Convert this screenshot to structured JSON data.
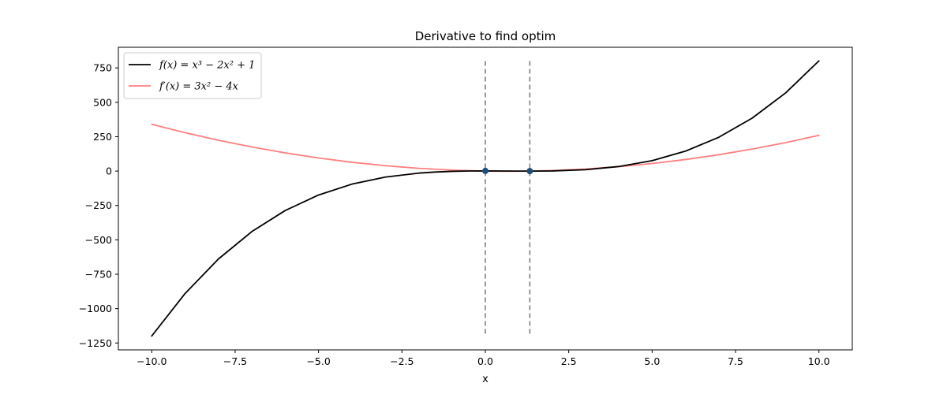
{
  "chart_data": {
    "type": "line",
    "title": "Derivative to find optim",
    "xlabel": "x",
    "ylabel": "",
    "xlim": [
      -11.0,
      11.0
    ],
    "ylim": [
      -1300,
      900
    ],
    "grid": false,
    "legend_position": "top-left",
    "x_ticks": [
      -10.0,
      -7.5,
      -5.0,
      -2.5,
      0.0,
      2.5,
      5.0,
      7.5,
      10.0
    ],
    "x_tick_labels": [
      "−10.0",
      "−7.5",
      "−5.0",
      "−2.5",
      "0.0",
      "2.5",
      "5.0",
      "7.5",
      "10.0"
    ],
    "y_ticks": [
      -1250,
      -1000,
      -750,
      -500,
      -250,
      0,
      250,
      500,
      750
    ],
    "y_tick_labels": [
      "−1250",
      "−1000",
      "−750",
      "−500",
      "−250",
      "0",
      "250",
      "500",
      "750"
    ],
    "series": [
      {
        "name": "f(x) = x³ − 2x² + 1",
        "color": "#000000",
        "x": [
          -10,
          -9,
          -8,
          -7,
          -6,
          -5,
          -4,
          -3,
          -2,
          -1.5,
          -1,
          -0.5,
          0,
          0.5,
          1,
          1.333,
          1.5,
          2,
          3,
          4,
          5,
          6,
          7,
          8,
          9,
          10
        ],
        "y": [
          -1199,
          -890,
          -639,
          -440,
          -287,
          -174,
          -95,
          -44,
          -15,
          -6.9,
          -2,
          0.375,
          1,
          0.625,
          0,
          -0.185,
          -0.125,
          1,
          10,
          33,
          76,
          145,
          246,
          385,
          568,
          801
        ]
      },
      {
        "name": "f′(x) = 3x² − 4x",
        "color": "#ff7f7f",
        "x": [
          -10,
          -9,
          -8,
          -7,
          -6,
          -5,
          -4,
          -3,
          -2,
          -1,
          0,
          0.5,
          1,
          1.333,
          2,
          3,
          4,
          5,
          6,
          7,
          8,
          9,
          10
        ],
        "y": [
          340,
          279,
          224,
          175,
          132,
          95,
          64,
          39,
          20,
          7,
          0,
          -1.25,
          -1,
          0,
          4,
          15,
          32,
          55,
          84,
          119,
          160,
          207,
          260
        ]
      }
    ],
    "critical_points": {
      "x": [
        0.0,
        1.333
      ],
      "y": [
        1.0,
        -0.185
      ],
      "color": "#1f4e79"
    },
    "vertical_lines": {
      "x": [
        0.0,
        1.333
      ],
      "y_range": [
        -1200,
        800
      ],
      "color": "#7f7f7f",
      "style": "dashed"
    }
  }
}
